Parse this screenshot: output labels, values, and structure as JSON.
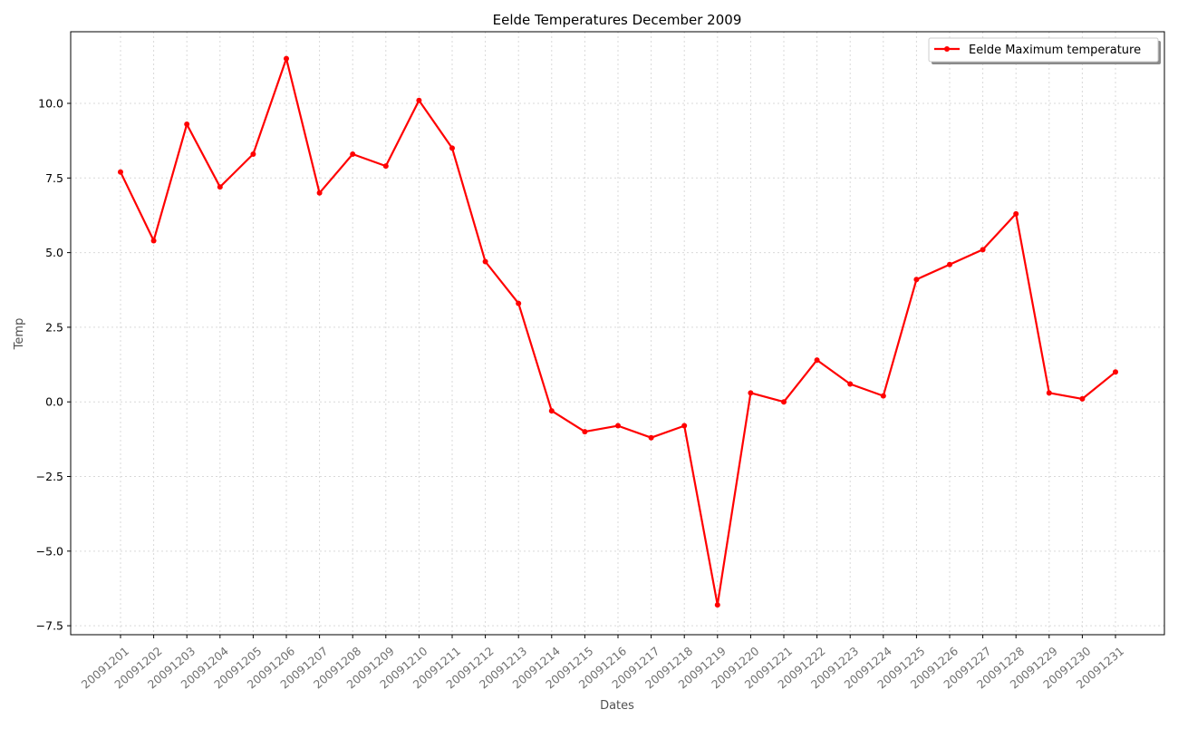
{
  "chart_data": {
    "type": "line",
    "title": "Eelde Temperatures December 2009",
    "xlabel": "Dates",
    "ylabel": "Temp",
    "categories": [
      "20091201",
      "20091202",
      "20091203",
      "20091204",
      "20091205",
      "20091206",
      "20091207",
      "20091208",
      "20091209",
      "20091210",
      "20091211",
      "20091212",
      "20091213",
      "20091214",
      "20091215",
      "20091216",
      "20091217",
      "20091218",
      "20091219",
      "20091220",
      "20091221",
      "20091222",
      "20091223",
      "20091224",
      "20091225",
      "20091226",
      "20091227",
      "20091228",
      "20091229",
      "20091230",
      "20091231"
    ],
    "series": [
      {
        "name": "Eelde Maximum temperature",
        "color": "#ff0000",
        "marker": "circle",
        "values": [
          7.7,
          5.4,
          9.3,
          7.2,
          8.3,
          11.5,
          7.0,
          8.3,
          7.9,
          10.1,
          8.5,
          4.7,
          3.3,
          -0.3,
          -1.0,
          -0.8,
          -1.2,
          -0.8,
          -6.8,
          0.3,
          0.0,
          1.4,
          0.6,
          0.2,
          4.1,
          4.6,
          5.1,
          6.3,
          0.3,
          0.1,
          1.0
        ]
      }
    ],
    "yticks": [
      "−7.5",
      "−5.0",
      "−2.5",
      "0.0",
      "2.5",
      "5.0",
      "7.5",
      "10.0"
    ],
    "ylim": [
      -7.8,
      12.4
    ],
    "grid": true,
    "legend_position": "top-right"
  }
}
